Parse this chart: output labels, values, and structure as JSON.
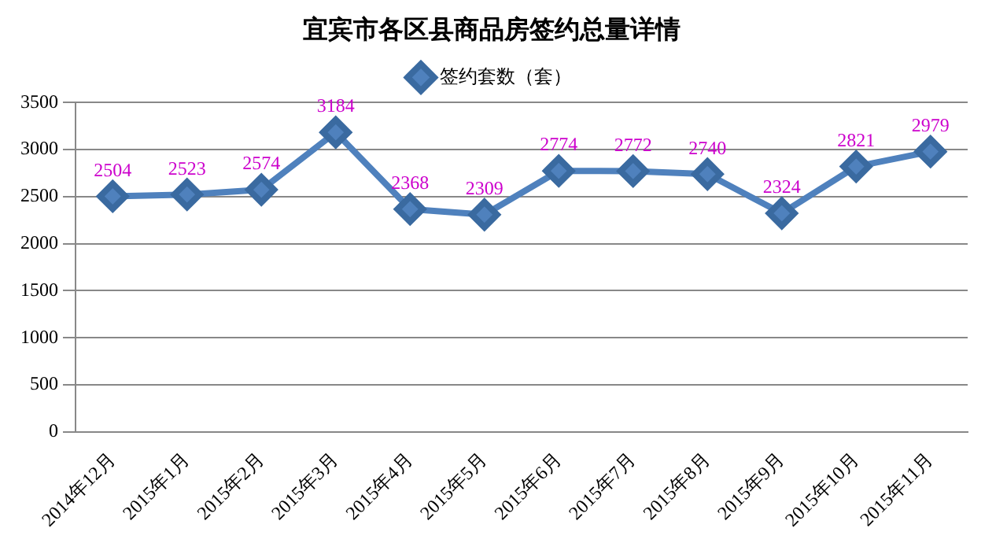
{
  "chart_data": {
    "type": "line",
    "title": "宜宾市各区县商品房签约总量详情",
    "categories": [
      "2014年12月",
      "2015年1月",
      "2015年2月",
      "2015年3月",
      "2015年4月",
      "2015年5月",
      "2015年6月",
      "2015年7月",
      "2015年8月",
      "2015年9月",
      "2015年10月",
      "2015年11月"
    ],
    "series": [
      {
        "name": "签约套数（套）",
        "color": "#4f81bd",
        "values": [
          2504,
          2523,
          2574,
          3184,
          2368,
          2309,
          2774,
          2772,
          2740,
          2324,
          2821,
          2979
        ]
      }
    ],
    "ylim": [
      0,
      3500
    ],
    "yticks": [
      0,
      500,
      1000,
      1500,
      2000,
      2500,
      3000,
      3500
    ],
    "grid": "y",
    "legend": "top",
    "marker": "diamond",
    "line_style": "solid",
    "data_labels": true
  }
}
